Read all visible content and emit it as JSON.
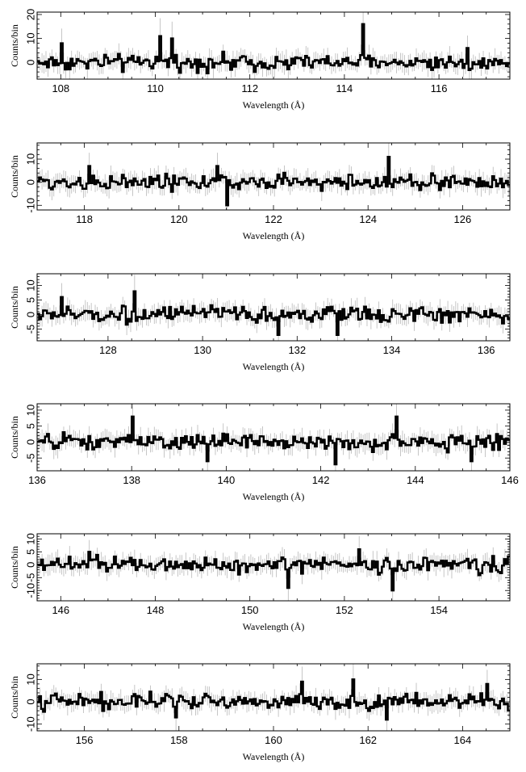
{
  "chart_data": [
    {
      "type": "histogram",
      "xlabel": "Wavelength (Å)",
      "ylabel": "Counts/bin",
      "xlim": [
        107.5,
        117.5
      ],
      "ylim": [
        -7,
        21
      ],
      "xticks": [
        108,
        110,
        112,
        114,
        116
      ],
      "yticks": [
        0,
        10,
        20
      ],
      "series_note": "step spectrum with grey error bars",
      "spikes": [
        [
          110.1,
          11
        ],
        [
          110.35,
          10
        ],
        [
          114.4,
          16
        ],
        [
          108.0,
          8
        ],
        [
          116.6,
          6
        ]
      ]
    },
    {
      "type": "histogram",
      "xlabel": "Wavelength (Å)",
      "ylabel": "Counts/bin",
      "xlim": [
        117,
        127
      ],
      "ylim": [
        -12,
        17
      ],
      "xticks": [
        118,
        120,
        122,
        124,
        126
      ],
      "yticks": [
        -10,
        0,
        10
      ],
      "spikes": [
        [
          124.45,
          11
        ],
        [
          118.1,
          7
        ],
        [
          121.0,
          -10
        ],
        [
          120.8,
          7
        ]
      ]
    },
    {
      "type": "histogram",
      "xlabel": "Wavelength (Å)",
      "ylabel": "Counts/bin",
      "xlim": [
        126.5,
        136.5
      ],
      "ylim": [
        -9,
        14
      ],
      "xticks": [
        128,
        130,
        132,
        134,
        136
      ],
      "yticks": [
        -5,
        0,
        5,
        10
      ],
      "spikes": [
        [
          128.55,
          8
        ],
        [
          131.6,
          -7
        ],
        [
          132.85,
          -7
        ],
        [
          127.0,
          6
        ]
      ]
    },
    {
      "type": "histogram",
      "xlabel": "Wavelength (Å)",
      "ylabel": "Counts/bin",
      "xlim": [
        136,
        146
      ],
      "ylim": [
        -9,
        12
      ],
      "xticks": [
        136,
        138,
        140,
        142,
        144,
        146
      ],
      "yticks": [
        -5,
        0,
        5,
        10
      ],
      "spikes": [
        [
          138.0,
          8
        ],
        [
          143.6,
          8
        ],
        [
          142.3,
          -7
        ],
        [
          139.6,
          -6
        ],
        [
          145.2,
          -6
        ]
      ]
    },
    {
      "type": "histogram",
      "xlabel": "Wavelength (Å)",
      "ylabel": "Counts/bin",
      "xlim": [
        145.5,
        155.5
      ],
      "ylim": [
        -14,
        12
      ],
      "xticks": [
        146,
        148,
        150,
        152,
        154
      ],
      "yticks": [
        -10,
        -5,
        0,
        5,
        10
      ],
      "spikes": [
        [
          153.0,
          -10
        ],
        [
          150.8,
          -9
        ],
        [
          152.3,
          6
        ],
        [
          146.6,
          5
        ]
      ]
    },
    {
      "type": "histogram",
      "xlabel": "Wavelength (Å)",
      "ylabel": "Counts/bin",
      "xlim": [
        155,
        165
      ],
      "ylim": [
        -13,
        17
      ],
      "xticks": [
        156,
        158,
        160,
        162,
        164
      ],
      "yticks": [
        -10,
        0,
        10
      ],
      "spikes": [
        [
          161.7,
          10
        ],
        [
          160.6,
          9
        ],
        [
          162.4,
          -8
        ],
        [
          157.95,
          -7
        ],
        [
          164.5,
          8
        ]
      ]
    }
  ]
}
